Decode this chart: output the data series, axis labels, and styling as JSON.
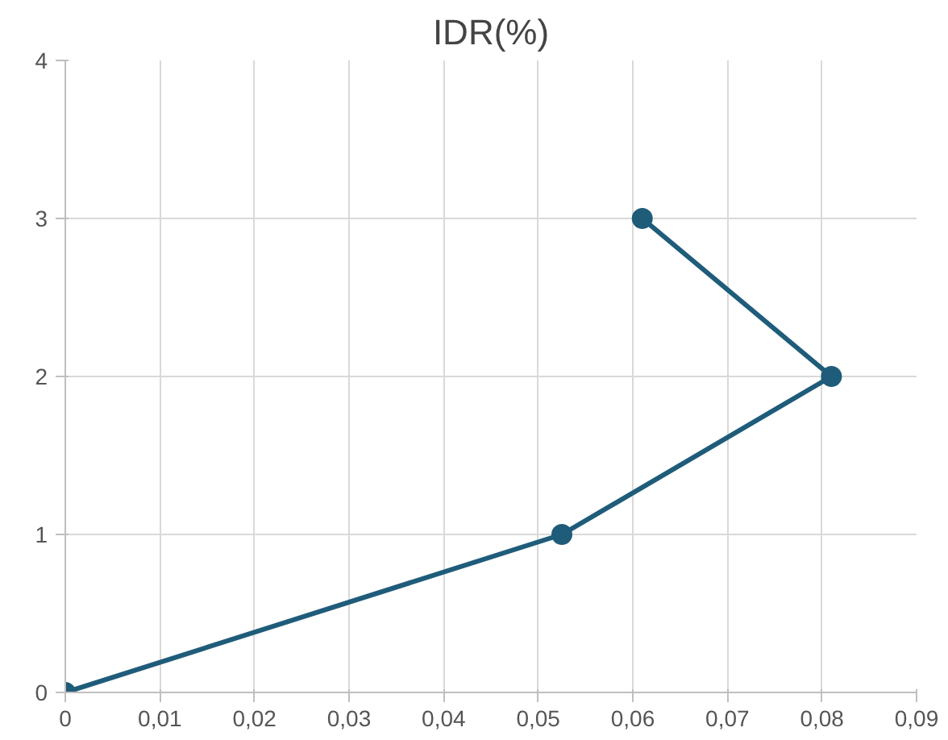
{
  "chart_data": {
    "type": "line",
    "title": "IDR(%)",
    "x": [
      0,
      0.0525,
      0.081,
      0.061
    ],
    "series": [
      {
        "color": "#1f5c7a",
        "values": [
          0,
          1,
          2,
          3
        ]
      }
    ],
    "xlim": [
      0,
      0.09
    ],
    "xticks": [
      0,
      {
        "value": 0.01,
        "label": "0,01"
      },
      {
        "value": 0.02,
        "label": "0,02"
      },
      {
        "value": 0.03,
        "label": "0,03"
      },
      {
        "value": 0.04,
        "label": "0,04"
      },
      {
        "value": 0.05,
        "label": "0,05"
      },
      {
        "value": 0.06,
        "label": "0,06"
      },
      {
        "value": 0.07,
        "label": "0,07"
      },
      {
        "value": 0.08,
        "label": "0,08"
      },
      {
        "value": 0.09,
        "label": "0,09"
      }
    ],
    "ylim": [
      0,
      4
    ],
    "yticks": [
      0,
      1,
      2,
      3,
      4
    ],
    "grid": true,
    "marker": "circle",
    "line_style": "solid"
  }
}
